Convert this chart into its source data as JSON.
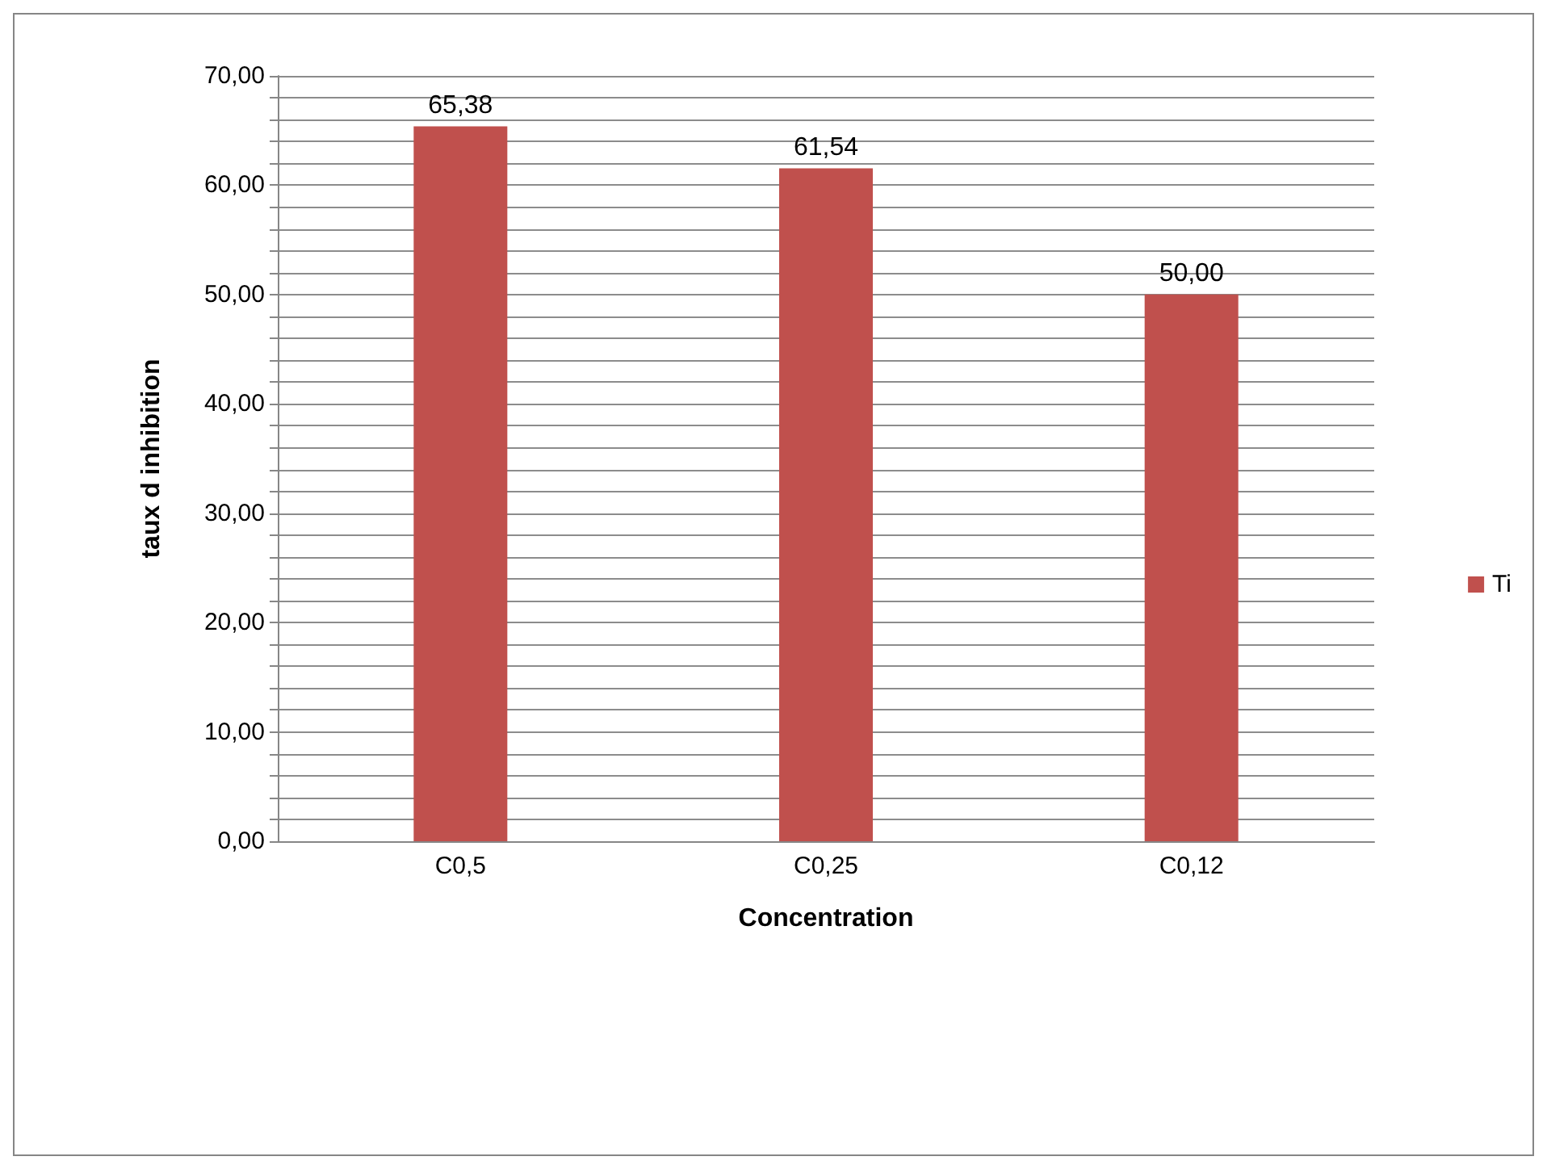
{
  "chart_data": {
    "type": "bar",
    "xlabel": "Concentration",
    "ylabel": "taux d inhibition",
    "categories": [
      "C0,5",
      "C0,25",
      "C0,12"
    ],
    "series": [
      {
        "name": "Ti",
        "color": "#c0504d",
        "values": [
          65.38,
          61.54,
          50.0
        ],
        "value_labels": [
          "65,38",
          "61,54",
          "50,00"
        ]
      }
    ],
    "ylim": [
      0,
      70
    ],
    "yticks": [
      {
        "value": 0,
        "label": "0,00"
      },
      {
        "value": 2,
        "label": null
      },
      {
        "value": 4,
        "label": null
      },
      {
        "value": 6,
        "label": null
      },
      {
        "value": 8,
        "label": null
      },
      {
        "value": 10,
        "label": "10,00"
      },
      {
        "value": 12,
        "label": null
      },
      {
        "value": 14,
        "label": null
      },
      {
        "value": 16,
        "label": null
      },
      {
        "value": 18,
        "label": null
      },
      {
        "value": 20,
        "label": "20,00"
      },
      {
        "value": 22,
        "label": null
      },
      {
        "value": 24,
        "label": null
      },
      {
        "value": 26,
        "label": null
      },
      {
        "value": 28,
        "label": null
      },
      {
        "value": 30,
        "label": "30,00"
      },
      {
        "value": 32,
        "label": null
      },
      {
        "value": 34,
        "label": null
      },
      {
        "value": 36,
        "label": null
      },
      {
        "value": 38,
        "label": null
      },
      {
        "value": 40,
        "label": "40,00"
      },
      {
        "value": 42,
        "label": null
      },
      {
        "value": 44,
        "label": null
      },
      {
        "value": 46,
        "label": null
      },
      {
        "value": 48,
        "label": null
      },
      {
        "value": 50,
        "label": "50,00"
      },
      {
        "value": 52,
        "label": null
      },
      {
        "value": 54,
        "label": null
      },
      {
        "value": 56,
        "label": null
      },
      {
        "value": 58,
        "label": null
      },
      {
        "value": 60,
        "label": "60,00"
      },
      {
        "value": 62,
        "label": null
      },
      {
        "value": 64,
        "label": null
      },
      {
        "value": 66,
        "label": null
      },
      {
        "value": 68,
        "label": null
      },
      {
        "value": 70,
        "label": "70,00"
      }
    ],
    "grid": true,
    "legend": "right"
  }
}
